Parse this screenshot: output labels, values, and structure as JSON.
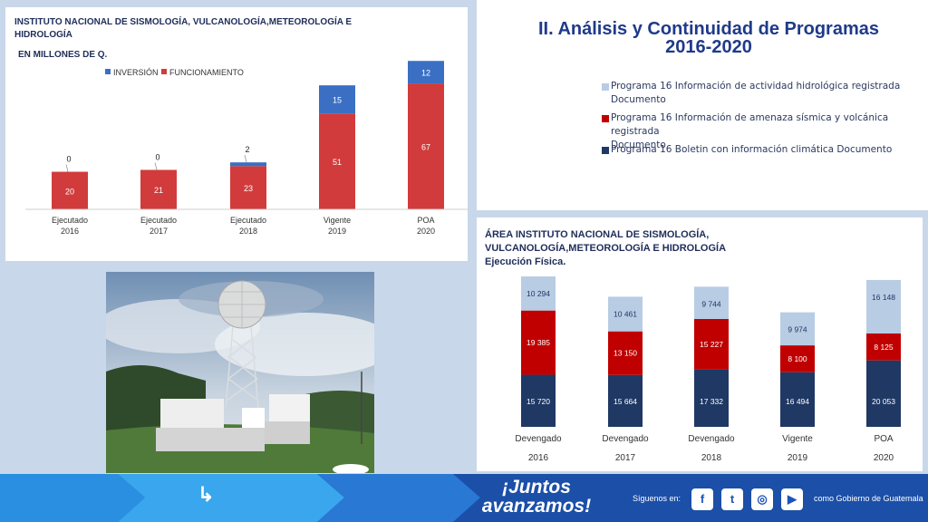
{
  "budget_panel": {
    "title": "INSTITUTO NACIONAL DE SISMOLOGÍA, VULCANOLOGÍA,METEOROLOGÍA E HIDROLOGÍA",
    "subtitle": "EN MILLONES DE Q."
  },
  "header": {
    "title_line1": "II. Análisis y Continuidad de Programas",
    "title_line2": "2016-2020"
  },
  "program_legend": [
    {
      "line1": "Programa 16 Información de actividad hidrológica registrada",
      "line2": "Documento",
      "color": "#b8cce4"
    },
    {
      "line1": "Programa 16 Información de amenaza sísmica y volcánica registrada",
      "line2": "Documento",
      "color": "#c00000"
    },
    {
      "line1": "Programa 16 Boletin con información climática Documento",
      "line2": "",
      "color": "#1f3864"
    }
  ],
  "physical_panel": {
    "title_line1": "ÁREA  INSTITUTO NACIONAL DE SISMOLOGÍA,",
    "title_line2": "VULCANOLOGÍA,METEOROLOGÍA E HIDROLOGÍA",
    "title_line3": "Ejecución Física."
  },
  "footer": {
    "slogan_line1": "¡Juntos",
    "slogan_line2": "avanzamos!",
    "follow_label": "Síguenos en:",
    "account_label": "como Gobierno de Guatemala"
  },
  "chart_data": [
    {
      "type": "bar",
      "stacked": true,
      "categories": [
        {
          "line1": "Ejecutado",
          "line2": "2016"
        },
        {
          "line1": "Ejecutado",
          "line2": "2017"
        },
        {
          "line1": "Ejecutado",
          "line2": "2018"
        },
        {
          "line1": "Vigente",
          "line2": "2019"
        },
        {
          "line1": "POA",
          "line2": "2020"
        }
      ],
      "series": [
        {
          "name": "FUNCIONAMIENTO",
          "values": [
            20,
            21,
            23,
            51,
            67
          ],
          "color": "#d23b3b"
        },
        {
          "name": "INVERSIÓN",
          "values": [
            0,
            0,
            2,
            15,
            12
          ],
          "color": "#3a6fc4"
        }
      ],
      "legend": "top",
      "ylim": [
        0,
        82
      ],
      "grid": false
    },
    {
      "type": "bar",
      "stacked": true,
      "categories": [
        {
          "line1": "Devengado",
          "line2": "2016"
        },
        {
          "line1": "Devengado",
          "line2": "2017"
        },
        {
          "line1": "Devengado",
          "line2": "2018"
        },
        {
          "line1": "Vigente",
          "line2": "2019"
        },
        {
          "line1": "POA",
          "line2": "2020"
        }
      ],
      "series": [
        {
          "values": [
            15720,
            15664,
            17332,
            16494,
            20053
          ],
          "labels": [
            "15 720",
            "15 664",
            "17 332",
            "16 494",
            "20 053"
          ],
          "color": "#1f3864"
        },
        {
          "values": [
            19385,
            13150,
            15227,
            8100,
            8125
          ],
          "labels": [
            "19 385",
            "13 150",
            "15 227",
            "8 100",
            "8 125"
          ],
          "color": "#c00000"
        },
        {
          "values": [
            10294,
            10461,
            9744,
            9974,
            16148
          ],
          "labels": [
            "10 294",
            "10 461",
            "9 744",
            "9 974",
            "16 148"
          ],
          "color": "#b8cce4"
        }
      ],
      "ylim": [
        0,
        46500
      ],
      "grid": false
    }
  ]
}
